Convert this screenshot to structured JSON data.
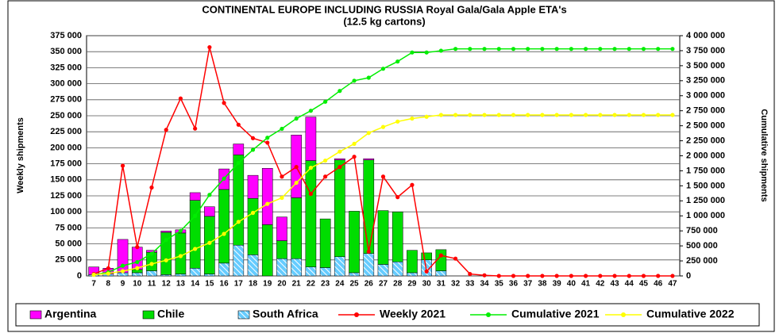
{
  "chart_data": {
    "type": "combo",
    "title": "CONTINENTAL EUROPE INCLUDING RUSSIA Royal Gala/Gala Apple ETA's",
    "subtitle": "(12.5 kg cartons)",
    "y_label": "Weekly shipments",
    "y2_label": "Cumulative shipments",
    "categories": [
      "7",
      "8",
      "9",
      "10",
      "11",
      "12",
      "13",
      "14",
      "15",
      "16",
      "17",
      "18",
      "19",
      "20",
      "21",
      "22",
      "23",
      "24",
      "25",
      "26",
      "27",
      "28",
      "29",
      "30",
      "31",
      "32",
      "33",
      "34",
      "35",
      "36",
      "37",
      "38",
      "39",
      "40",
      "41",
      "42",
      "43",
      "44",
      "45",
      "46",
      "47"
    ],
    "ylim": [
      0,
      375000
    ],
    "yticks": [
      0,
      {
        "value": 25000,
        "label": "25 000"
      },
      {
        "value": 50000,
        "label": "50 000"
      },
      {
        "value": 75000,
        "label": "75 000"
      },
      {
        "value": 100000,
        "label": "100 000"
      },
      {
        "value": 125000,
        "label": "125 000"
      },
      {
        "value": 150000,
        "label": "150 000"
      },
      {
        "value": 175000,
        "label": "175 000"
      },
      {
        "value": 200000,
        "label": "200 000"
      },
      {
        "value": 225000,
        "label": "225 000"
      },
      {
        "value": 250000,
        "label": "250 000"
      },
      {
        "value": 275000,
        "label": "275 000"
      },
      {
        "value": 300000,
        "label": "300 000"
      },
      {
        "value": 325000,
        "label": "325 000"
      },
      {
        "value": 350000,
        "label": "350 000"
      },
      {
        "value": 375000,
        "label": "375 000"
      }
    ],
    "y2lim": [
      0,
      4000000
    ],
    "y2ticks": [
      0,
      {
        "value": 250000,
        "label": "250 000"
      },
      {
        "value": 500000,
        "label": "500 000"
      },
      {
        "value": 750000,
        "label": "750 000"
      },
      {
        "value": 1000000,
        "label": "1 000 000"
      },
      {
        "value": 1250000,
        "label": "1 250 000"
      },
      {
        "value": 1500000,
        "label": "1 500 000"
      },
      {
        "value": 1750000,
        "label": "1 750 000"
      },
      {
        "value": 2000000,
        "label": "2 000 000"
      },
      {
        "value": 2250000,
        "label": "2 250 000"
      },
      {
        "value": 2500000,
        "label": "2 500 000"
      },
      {
        "value": 2750000,
        "label": "2 750 000"
      },
      {
        "value": 3000000,
        "label": "3 000 000"
      },
      {
        "value": 3250000,
        "label": "3 250 000"
      },
      {
        "value": 3500000,
        "label": "3 500 000"
      },
      {
        "value": 3750000,
        "label": "3 750 000"
      },
      {
        "value": 4000000,
        "label": "4 000 000"
      }
    ],
    "grid": true,
    "legend": "bottom",
    "series": [
      {
        "name": "Argentina",
        "type": "bar",
        "color": "#ff00ff",
        "values": [
          12000,
          9000,
          52000,
          35000,
          3000,
          2000,
          5000,
          12000,
          15000,
          32000,
          17000,
          36000,
          88000,
          37000,
          98000,
          68000,
          0,
          2000,
          0,
          2000,
          0,
          0,
          0,
          0,
          0,
          null,
          null,
          null,
          null,
          null,
          null,
          null,
          null,
          null,
          null,
          null,
          null,
          null,
          null,
          null,
          null
        ]
      },
      {
        "name": "Chile",
        "type": "bar",
        "color": "#00dd00",
        "values": [
          0,
          0,
          0,
          5000,
          29000,
          66000,
          64000,
          106000,
          90000,
          115000,
          141000,
          88000,
          80000,
          28000,
          95000,
          166000,
          76000,
          151000,
          96000,
          146000,
          84000,
          78000,
          35000,
          11000,
          33000,
          null,
          null,
          null,
          null,
          null,
          null,
          null,
          null,
          null,
          null,
          null,
          null,
          null,
          null,
          null,
          null
        ]
      },
      {
        "name": "South Africa",
        "type": "bar",
        "color": "#66ccff",
        "hatch": true,
        "values": [
          2000,
          3000,
          5000,
          5000,
          8000,
          2000,
          3000,
          12000,
          3000,
          20000,
          48000,
          33000,
          0,
          27000,
          27000,
          14000,
          13000,
          30000,
          5000,
          35000,
          18000,
          22000,
          5000,
          25000,
          8000,
          null,
          null,
          null,
          null,
          null,
          null,
          null,
          null,
          null,
          null,
          null,
          null,
          null,
          null,
          null,
          null
        ]
      },
      {
        "name": "Weekly 2021",
        "type": "line",
        "color": "#ff0000",
        "values": [
          3000,
          12000,
          172000,
          45000,
          138000,
          228000,
          277000,
          230000,
          357000,
          270000,
          236000,
          215000,
          208000,
          155000,
          170000,
          128000,
          155000,
          170000,
          186000,
          38000,
          155000,
          123000,
          142000,
          7000,
          32000,
          27000,
          3000,
          1000,
          0,
          0,
          0,
          0,
          0,
          0,
          0,
          0,
          0,
          0,
          0,
          0,
          0
        ]
      },
      {
        "name": "Cumulative 2021",
        "type": "line",
        "axis": "y2",
        "color": "#00ee00",
        "values": [
          20000,
          60000,
          170000,
          230000,
          370000,
          600000,
          750000,
          1000000,
          1350000,
          1620000,
          1880000,
          2100000,
          2300000,
          2450000,
          2620000,
          2750000,
          2900000,
          3080000,
          3250000,
          3300000,
          3450000,
          3570000,
          3720000,
          3720000,
          3750000,
          3780000,
          3780000,
          3780000,
          3780000,
          3780000,
          3780000,
          3780000,
          3780000,
          3780000,
          3780000,
          3780000,
          3780000,
          3780000,
          3780000,
          3780000,
          3780000
        ]
      },
      {
        "name": "Cumulative 2022",
        "type": "line",
        "axis": "y2",
        "color": "#ffff00",
        "values": [
          20000,
          40000,
          80000,
          130000,
          200000,
          260000,
          330000,
          450000,
          550000,
          700000,
          900000,
          1050000,
          1200000,
          1300000,
          1550000,
          1800000,
          1920000,
          2070000,
          2200000,
          2380000,
          2480000,
          2570000,
          2620000,
          2650000,
          2680000,
          2680000,
          2680000,
          2680000,
          2680000,
          2680000,
          2680000,
          2680000,
          2680000,
          2680000,
          2680000,
          2680000,
          2680000,
          2680000,
          2680000,
          2680000,
          2680000
        ]
      }
    ]
  }
}
